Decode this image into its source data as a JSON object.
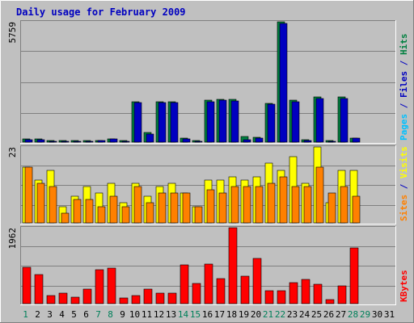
{
  "chart_data": {
    "type": "bar",
    "title": "Daily usage for February 2009",
    "days": [
      "1",
      "2",
      "3",
      "4",
      "5",
      "6",
      "7",
      "8",
      "9",
      "10",
      "11",
      "12",
      "13",
      "14",
      "15",
      "16",
      "17",
      "18",
      "19",
      "20",
      "21",
      "22",
      "23",
      "24",
      "25",
      "26",
      "27",
      "28",
      "29",
      "30",
      "31"
    ],
    "weekend_days": [
      "1",
      "7",
      "8",
      "14",
      "15",
      "21",
      "22",
      "28",
      "29"
    ],
    "panels": [
      {
        "id": "pages-files-hits",
        "max_label": "5759",
        "max": 5759,
        "legend": [
          {
            "text": "Pages",
            "color": "#00c0ff"
          },
          {
            "text": " / ",
            "color": "#0000c0"
          },
          {
            "text": "Files",
            "color": "#0000c0"
          },
          {
            "text": " / ",
            "color": "#0000c0"
          },
          {
            "text": "Hits",
            "color": "#008040"
          }
        ],
        "series": [
          {
            "name": "Hits",
            "color": "#008040",
            "values": [
              150,
              150,
              80,
              80,
              80,
              80,
              80,
              170,
              80,
              1950,
              450,
              1950,
              1950,
              190,
              80,
              2000,
              2050,
              2050,
              280,
              220,
              1850,
              5760,
              2000,
              130,
              2160,
              80,
              2160,
              200,
              0,
              0,
              0
            ]
          },
          {
            "name": "Files",
            "color": "#0000c0",
            "values": [
              100,
              130,
              50,
              50,
              50,
              50,
              70,
              150,
              50,
              1900,
              400,
              1900,
              1900,
              150,
              50,
              1950,
              2000,
              1990,
              120,
              180,
              1800,
              5700,
              1950,
              80,
              2100,
              50,
              2100,
              180,
              0,
              0,
              0
            ]
          },
          {
            "name": "Pages",
            "color": "#00c0ff",
            "values": [
              0,
              0,
              0,
              0,
              0,
              0,
              0,
              0,
              0,
              0,
              0,
              0,
              0,
              0,
              0,
              0,
              0,
              0,
              0,
              0,
              0,
              0,
              0,
              0,
              0,
              0,
              0,
              0,
              0,
              0,
              0
            ]
          }
        ]
      },
      {
        "id": "visits-sites",
        "max_label": "23",
        "max": 23,
        "legend": [
          {
            "text": "Sites",
            "color": "#ff8000"
          },
          {
            "text": " / ",
            "color": "#0000c0"
          },
          {
            "text": "Visits",
            "color": "#ffff00"
          }
        ],
        "series": [
          {
            "name": "Visits",
            "color": "#ffff00",
            "values": [
              17,
              13,
              16,
              5,
              8,
              11,
              9,
              12,
              6,
              12,
              8,
              11,
              12,
              9,
              5,
              13,
              13,
              14,
              13,
              14,
              18,
              16,
              20,
              12,
              23,
              6,
              16,
              16,
              0,
              0,
              0
            ]
          },
          {
            "name": "Sites",
            "color": "#ff8000",
            "values": [
              17,
              12,
              11,
              3,
              7,
              7,
              5,
              8,
              5,
              11,
              6,
              9,
              9,
              9,
              5,
              10,
              9,
              11,
              11,
              11,
              12,
              14,
              11,
              11,
              17,
              9,
              11,
              8,
              0,
              0,
              0
            ]
          }
        ]
      },
      {
        "id": "kbytes",
        "max_label": "1962",
        "max": 1962,
        "legend": [
          {
            "text": "KBytes",
            "color": "#ff0000"
          }
        ],
        "series": [
          {
            "name": "KBytes",
            "color": "#ff0000",
            "values": [
              930,
              755,
              215,
              270,
              170,
              370,
              870,
              910,
              150,
              200,
              375,
              275,
              280,
              1010,
              520,
              1030,
              650,
              1962,
              700,
              1170,
              340,
              325,
              540,
              630,
              500,
              95,
              460,
              1440,
              0,
              0,
              0
            ]
          }
        ]
      }
    ]
  }
}
